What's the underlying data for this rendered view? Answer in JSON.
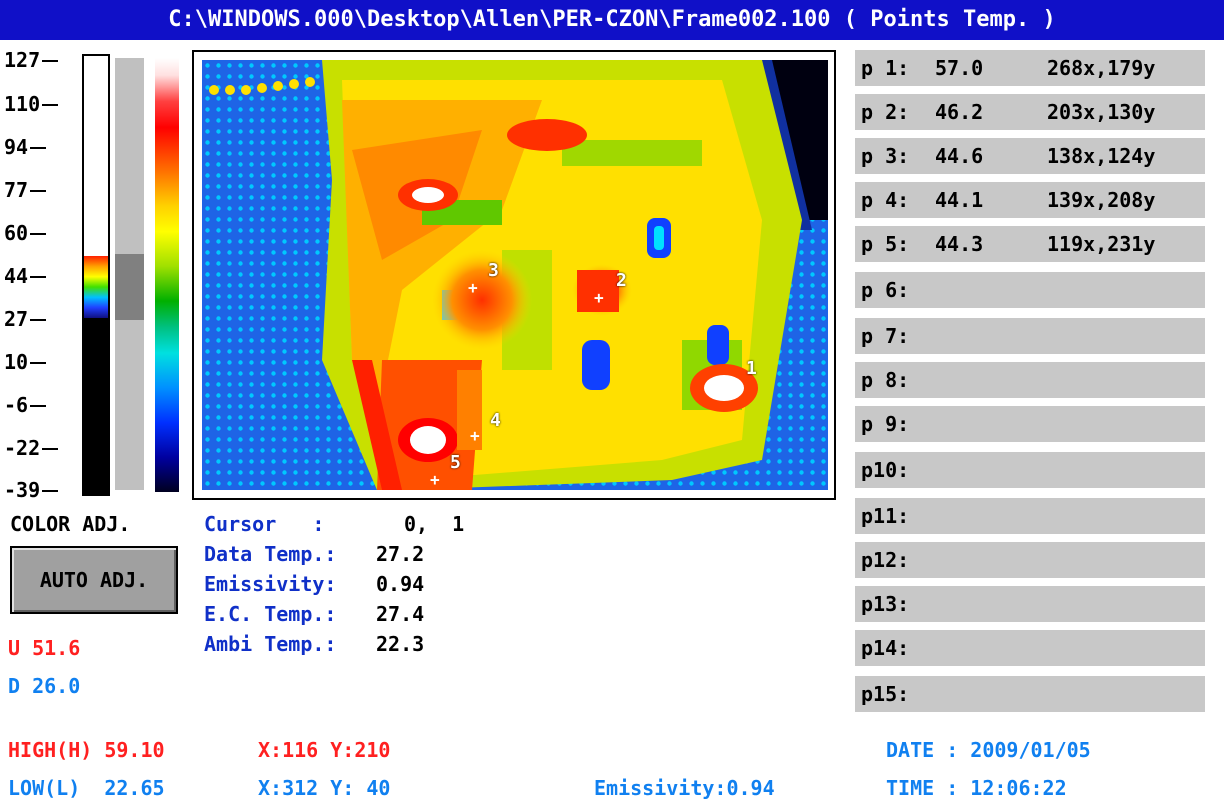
{
  "title": "C:\\WINDOWS.000\\Desktop\\Allen\\PER-CZON\\Frame002.100 ( Points Temp. )",
  "scale": {
    "ticks": [
      "127",
      "110",
      "94",
      "77",
      "60",
      "44",
      "27",
      "10",
      "-6",
      "-22",
      "-39"
    ]
  },
  "color_adj_label": "COLOR ADJ.",
  "auto_adj_label": "AUTO ADJ.",
  "level": {
    "u": "U 51.6",
    "d": "D 26.0"
  },
  "readout": {
    "cursor_label": "Cursor   :",
    "cursor_value": "0,  1",
    "data_temp_label": "Data Temp.:",
    "data_temp_value": "27.2",
    "emissivity_label": "Emissivity:",
    "emissivity_value": "0.94",
    "ec_temp_label": "E.C. Temp.:",
    "ec_temp_value": "27.4",
    "ambi_temp_label": "Ambi Temp.:",
    "ambi_temp_value": "22.3"
  },
  "markers": [
    "1",
    "2",
    "3",
    "4",
    "5"
  ],
  "points": [
    {
      "label": "p 1:",
      "temp": "57.0",
      "coord": "268x,179y"
    },
    {
      "label": "p 2:",
      "temp": "46.2",
      "coord": "203x,130y"
    },
    {
      "label": "p 3:",
      "temp": "44.6",
      "coord": "138x,124y"
    },
    {
      "label": "p 4:",
      "temp": "44.1",
      "coord": "139x,208y"
    },
    {
      "label": "p 5:",
      "temp": "44.3",
      "coord": "119x,231y"
    },
    {
      "label": "p 6:",
      "temp": "",
      "coord": ""
    },
    {
      "label": "p 7:",
      "temp": "",
      "coord": ""
    },
    {
      "label": "p 8:",
      "temp": "",
      "coord": ""
    },
    {
      "label": "p 9:",
      "temp": "",
      "coord": ""
    },
    {
      "label": "p10:",
      "temp": "",
      "coord": ""
    },
    {
      "label": "p11:",
      "temp": "",
      "coord": ""
    },
    {
      "label": "p12:",
      "temp": "",
      "coord": ""
    },
    {
      "label": "p13:",
      "temp": "",
      "coord": ""
    },
    {
      "label": "p14:",
      "temp": "",
      "coord": ""
    },
    {
      "label": "p15:",
      "temp": "",
      "coord": ""
    }
  ],
  "footer": {
    "high": "HIGH(H) 59.10",
    "high_xy": "X:116 Y:210",
    "low": "LOW(L)  22.65",
    "low_xy": "X:312 Y: 40",
    "emissivity": "Emissivity:0.94",
    "date": "DATE : 2009/01/05",
    "time": "TIME : 12:06:22"
  },
  "colors": {
    "title_bg": "#1010c8",
    "high": "#ff2020",
    "low": "#1080f0",
    "label_blue": "#1030c8"
  }
}
